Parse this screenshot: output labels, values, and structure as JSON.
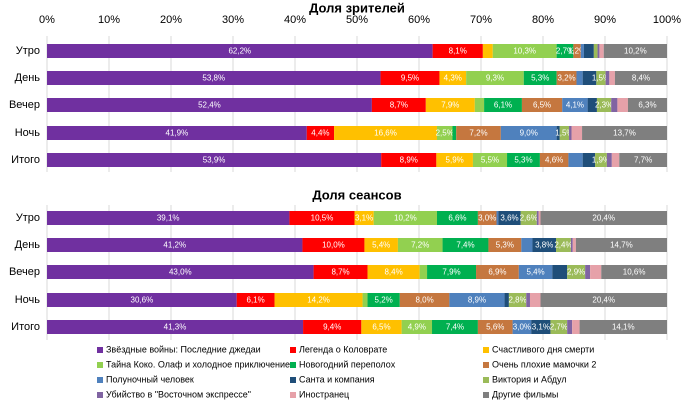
{
  "chart_data": [
    {
      "type": "stacked-bar-horizontal",
      "title": "Доля зрителей",
      "categories": [
        "Утро",
        "День",
        "Вечер",
        "Ночь",
        "Итого"
      ],
      "xlim": [
        0,
        100
      ],
      "xticks": [
        {
          "value": 0,
          "label": "0%"
        },
        {
          "value": 10,
          "label": "10%"
        },
        {
          "value": 20,
          "label": "20%"
        },
        {
          "value": 30,
          "label": "30%"
        },
        {
          "value": 40,
          "label": "40%"
        },
        {
          "value": 50,
          "label": "50%"
        },
        {
          "value": 60,
          "label": "60%"
        },
        {
          "value": 70,
          "label": "70%"
        },
        {
          "value": 80,
          "label": "80%"
        },
        {
          "value": 90,
          "label": "90%"
        },
        {
          "value": 100,
          "label": "100%"
        }
      ],
      "grid": true,
      "series": [
        {
          "name": "Звёздные войны: Последние джедаи",
          "color": "#7030a0",
          "values": [
            62.2,
            53.8,
            52.4,
            41.9,
            53.9
          ],
          "value_labels": [
            "62,2%",
            "53,8%",
            "52,4%",
            "41,9%",
            "53,9%"
          ]
        },
        {
          "name": "Легенда о Коловрате",
          "color": "#ff0000",
          "values": [
            8.1,
            9.5,
            8.7,
            4.4,
            8.9
          ],
          "value_labels": [
            "8,1%",
            "9,5%",
            "8,7%",
            "4,4%",
            "8,9%"
          ]
        },
        {
          "name": "Счастливого дня смерти",
          "color": "#ffc000",
          "values": [
            1.6,
            4.3,
            7.9,
            16.6,
            5.9
          ],
          "value_labels": [
            null,
            "4,3%",
            "7,9%",
            "16,6%",
            "5,9%"
          ]
        },
        {
          "name": "Тайна Коко. Олаф и холодное приключение",
          "color": "#92d050",
          "values": [
            10.3,
            9.3,
            1.5,
            2.5,
            5.5
          ],
          "value_labels": [
            "10,3%",
            "9,3%",
            null,
            "2,5%",
            "5,5%"
          ]
        },
        {
          "name": "Новогодний переполох",
          "color": "#00b050",
          "values": [
            2.7,
            5.3,
            6.1,
            0.6,
            5.3
          ],
          "value_labels": [
            "2,7%",
            "5,3%",
            "6,1%",
            null,
            "5,3%"
          ]
        },
        {
          "name": "Очень плохие мамочки 2",
          "color": "#c5773f",
          "values": [
            1.2,
            3.2,
            6.5,
            7.2,
            4.6
          ],
          "value_labels": [
            "1,2%",
            "3,2%",
            "6,5%",
            "7,2%",
            "4,6%"
          ]
        },
        {
          "name": "Полуночный человек",
          "color": "#4f81bd",
          "values": [
            0.5,
            1.0,
            4.1,
            9.0,
            2.3
          ],
          "value_labels": [
            null,
            null,
            "4,1%",
            "9,0%",
            null
          ]
        },
        {
          "name": "Санта и компания",
          "color": "#1f4e79",
          "values": [
            1.6,
            2.2,
            1.5,
            0.5,
            2.0
          ],
          "value_labels": [
            null,
            null,
            null,
            null,
            null
          ]
        },
        {
          "name": "Виктория и Абдул",
          "color": "#9bbb59",
          "values": [
            0.6,
            1.5,
            2.3,
            1.5,
            1.9
          ],
          "value_labels": [
            null,
            "1,5%",
            "2,3%",
            "1,5%",
            "1,9%"
          ]
        },
        {
          "name": "Убийство в \"Восточном экспрессе\"",
          "color": "#8064a2",
          "values": [
            0.3,
            0.6,
            1.0,
            0.4,
            0.8
          ],
          "value_labels": [
            null,
            null,
            null,
            null,
            null
          ]
        },
        {
          "name": "Иностранец",
          "color": "#e6a1a9",
          "values": [
            0.7,
            0.9,
            1.7,
            1.7,
            1.2
          ],
          "value_labels": [
            null,
            null,
            null,
            null,
            null
          ]
        },
        {
          "name": "Другие фильмы",
          "color": "#7f7f7f",
          "values": [
            10.2,
            8.4,
            6.3,
            13.7,
            7.7
          ],
          "value_labels": [
            "10,2%",
            "8,4%",
            "6,3%",
            "13,7%",
            "7,7%"
          ]
        }
      ]
    },
    {
      "type": "stacked-bar-horizontal",
      "title": "Доля сеансов",
      "categories": [
        "Утро",
        "День",
        "Вечер",
        "Ночь",
        "Итого"
      ],
      "xlim": [
        0,
        100
      ],
      "xticks": [
        0,
        10,
        20,
        30,
        40,
        50,
        60,
        70,
        80,
        90,
        100
      ],
      "grid": true,
      "series": [
        {
          "values": [
            39.1,
            41.2,
            43.0,
            30.6,
            41.3
          ],
          "value_labels": [
            "39,1%",
            "41,2%",
            "43,0%",
            "30,6%",
            "41,3%"
          ]
        },
        {
          "values": [
            10.5,
            10.0,
            8.7,
            6.1,
            9.4
          ],
          "value_labels": [
            "10,5%",
            "10,0%",
            "8,7%",
            "6,1%",
            "9,4%"
          ]
        },
        {
          "values": [
            3.1,
            5.4,
            8.4,
            14.2,
            6.5
          ],
          "value_labels": [
            "3,1%",
            "5,4%",
            "8,4%",
            "14,2%",
            "6,5%"
          ]
        },
        {
          "values": [
            10.2,
            7.2,
            1.2,
            0.8,
            4.9
          ],
          "value_labels": [
            "10,2%",
            "7,2%",
            null,
            null,
            "4,9%"
          ]
        },
        {
          "values": [
            6.6,
            7.4,
            7.9,
            5.2,
            7.4
          ],
          "value_labels": [
            "6,6%",
            "7,4%",
            "7,9%",
            "5,2%",
            "7,4%"
          ]
        },
        {
          "values": [
            3.0,
            5.3,
            6.9,
            8.0,
            5.6
          ],
          "value_labels": [
            "3,0%",
            "5,3%",
            "6,9%",
            "8,0%",
            "5,6%"
          ]
        },
        {
          "values": [
            0.3,
            1.8,
            5.4,
            8.9,
            3.0
          ],
          "value_labels": [
            null,
            null,
            "5,4%",
            "8,9%",
            "3,0%"
          ]
        },
        {
          "values": [
            3.6,
            3.8,
            2.4,
            0.7,
            3.1
          ],
          "value_labels": [
            "3,6%",
            "3,8%",
            null,
            null,
            "3,1%"
          ]
        },
        {
          "values": [
            2.6,
            2.4,
            2.9,
            2.8,
            2.7
          ],
          "value_labels": [
            "2,6%",
            "2,4%",
            "2,9%",
            "2,8%",
            "2,7%"
          ]
        },
        {
          "values": [
            0.3,
            0.3,
            0.8,
            0.6,
            0.8
          ],
          "value_labels": [
            null,
            null,
            null,
            null,
            null
          ]
        },
        {
          "values": [
            0.3,
            0.5,
            1.8,
            1.7,
            1.2
          ],
          "value_labels": [
            null,
            null,
            null,
            null,
            null
          ]
        },
        {
          "values": [
            20.4,
            14.7,
            10.6,
            20.4,
            14.1
          ],
          "value_labels": [
            "20,4%",
            "14,7%",
            "10,6%",
            "20,4%",
            "14,1%"
          ]
        }
      ]
    }
  ]
}
